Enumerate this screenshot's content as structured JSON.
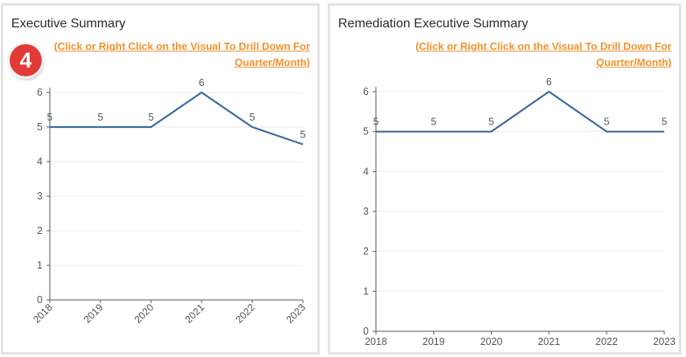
{
  "colors": {
    "line": "#3a6a9b",
    "link": "#f0932e",
    "badge": "#e23a36"
  },
  "badge": {
    "number": "4"
  },
  "left_panel": {
    "title": "Executive Summary",
    "link_line1": "(Click or Right Click on the Visual To Drill Down For",
    "link_line2": "Quarter/Month)"
  },
  "right_panel": {
    "title": "Remediation Executive Summary",
    "link_line1": "(Click or Right Click on the Visual To Drill Down For",
    "link_line2": "Quarter/Month)"
  },
  "chart_data": [
    {
      "type": "line",
      "title": "Executive Summary",
      "categories": [
        "2018",
        "2019",
        "2020",
        "2021",
        "2022",
        "2023"
      ],
      "values": [
        5,
        5,
        5,
        6,
        5,
        4.5
      ],
      "labels": [
        "5",
        "5",
        "5",
        "6",
        "5",
        "5"
      ],
      "yticks": [
        0,
        1,
        2,
        3,
        4,
        5,
        6
      ],
      "ylim": [
        0,
        6
      ],
      "grid": true
    },
    {
      "type": "line",
      "title": "Remediation Executive Summary",
      "categories": [
        "2018",
        "2019",
        "2020",
        "2021",
        "2022",
        "2023"
      ],
      "values": [
        5,
        5,
        5,
        6,
        5,
        5
      ],
      "labels": [
        "5",
        "5",
        "5",
        "6",
        "5",
        "5"
      ],
      "yticks": [
        0,
        1,
        2,
        3,
        4,
        5,
        6
      ],
      "ylim": [
        0,
        6
      ],
      "grid": true
    }
  ]
}
